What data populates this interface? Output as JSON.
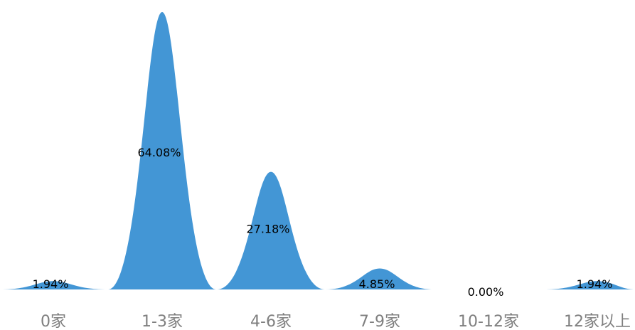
{
  "colors": {
    "bar": "#4396d5",
    "tick_text": "#7f7f7f",
    "label_text": "#000000"
  },
  "chart_data": {
    "type": "area",
    "style": "pictorial-peak",
    "categories": [
      "0家",
      "1-3家",
      "4-6家",
      "7-9家",
      "10-12家",
      "12家以上"
    ],
    "values": [
      1.94,
      64.08,
      27.18,
      4.85,
      0.0,
      1.94
    ],
    "data_labels": [
      "1.94%",
      "64.08%",
      "27.18%",
      "4.85%",
      "0.00%",
      "1.94%"
    ],
    "title": "",
    "xlabel": "",
    "ylabel": "",
    "ylim": [
      0,
      64.08
    ],
    "grid": false,
    "legend": "none"
  }
}
